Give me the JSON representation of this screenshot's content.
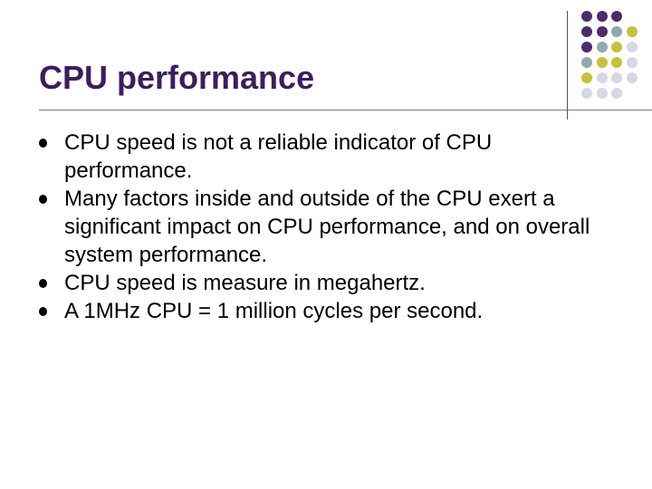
{
  "slide": {
    "title": "CPU performance",
    "bullets": [
      "CPU speed is not a reliable indicator of CPU performance.",
      "Many factors inside and outside of the CPU exert a significant impact on CPU performance, and on overall system performance.",
      "CPU speed is measure in megahertz.",
      "A 1MHz CPU = 1 million cycles per second."
    ]
  },
  "colors": {
    "title": "#3b1f5c",
    "purple": "#4a2d6b",
    "teal": "#8fa9ae",
    "olive": "#c4c236",
    "lavender": "#d7d7e6"
  },
  "decoration": {
    "dot_rows": [
      [
        "purple",
        "purple",
        "purple"
      ],
      [
        "purple",
        "purple",
        "teal",
        "olive"
      ],
      [
        "purple",
        "teal",
        "olive",
        "lavender"
      ],
      [
        "teal",
        "olive",
        "olive",
        "lavender"
      ],
      [
        "olive",
        "lavender",
        "lavender",
        "lavender"
      ],
      [
        "lavender",
        "lavender",
        "lavender"
      ]
    ]
  }
}
